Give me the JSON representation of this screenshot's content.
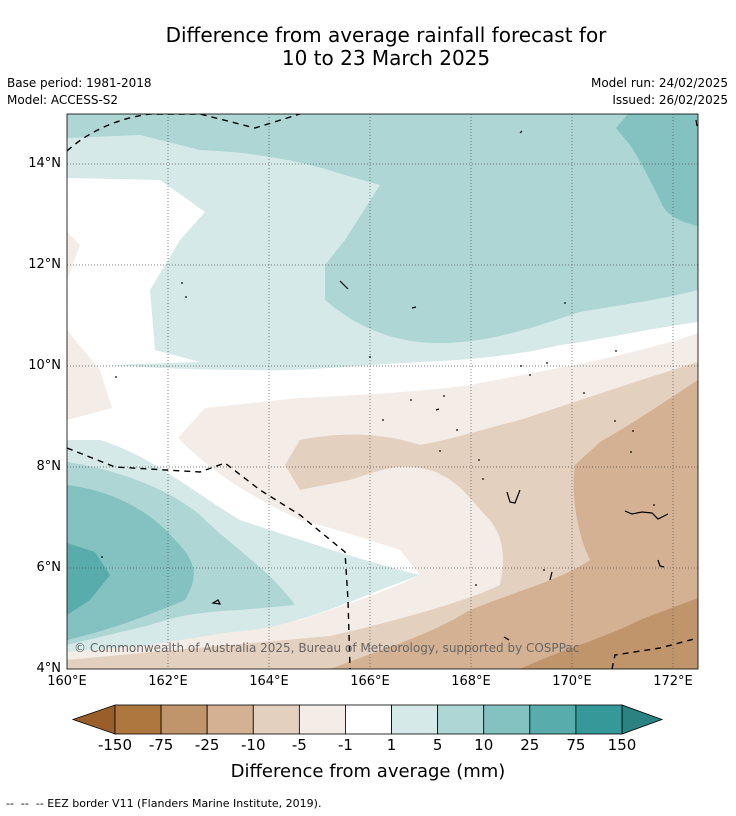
{
  "title": {
    "line1": "Difference from average rainfall forecast for",
    "line2": "10 to 23 March 2025"
  },
  "meta": {
    "base_period": "Base period: 1981-2018",
    "model": "Model: ACCESS-S2",
    "model_run": "Model run: 24/02/2025",
    "issued": "Issued: 26/02/2025"
  },
  "map": {
    "lat_labels": [
      "14°N",
      "12°N",
      "10°N",
      "8°N",
      "6°N",
      "4°N"
    ],
    "lon_labels": [
      "160°E",
      "162°E",
      "164°E",
      "166°E",
      "168°E",
      "170°E",
      "172°E"
    ],
    "copyright": "© Commonwealth of Australia 2025, Bureau of Meteorology, supported by COSPPac",
    "grid": "dotted",
    "colors": {
      "dry_lt150": "#9a5e2a",
      "dry_150_75": "#ad773f",
      "dry_75_25": "#c1956b",
      "dry_25_10": "#d3b192",
      "dry_10_5": "#e4d0bf",
      "dry_5_1": "#f4ece6",
      "neutral": "#ffffff",
      "wet_1_5": "#d5e9e8",
      "wet_5_10": "#aed6d5",
      "wet_10_25": "#84c2c1",
      "wet_25_75": "#58acab",
      "wet_75_150": "#35999a",
      "wet_gt150": "#2a8281"
    }
  },
  "colorbar": {
    "ticks": [
      "-150",
      "-75",
      "-25",
      "-10",
      "-5",
      "-1",
      "1",
      "5",
      "10",
      "25",
      "75",
      "150"
    ],
    "colors": [
      "#ad773f",
      "#c1956b",
      "#d3b192",
      "#e4d0bf",
      "#f4ece6",
      "#ffffff",
      "#d5e9e8",
      "#aed6d5",
      "#84c2c1",
      "#58acab",
      "#35999a"
    ],
    "extend_low_color": "#9a5e2a",
    "extend_high_color": "#2a8281",
    "label": "Difference from average (mm)"
  },
  "footnote": "--  --  -- EEZ border V11 (Flanders Marine Institute, 2019)."
}
